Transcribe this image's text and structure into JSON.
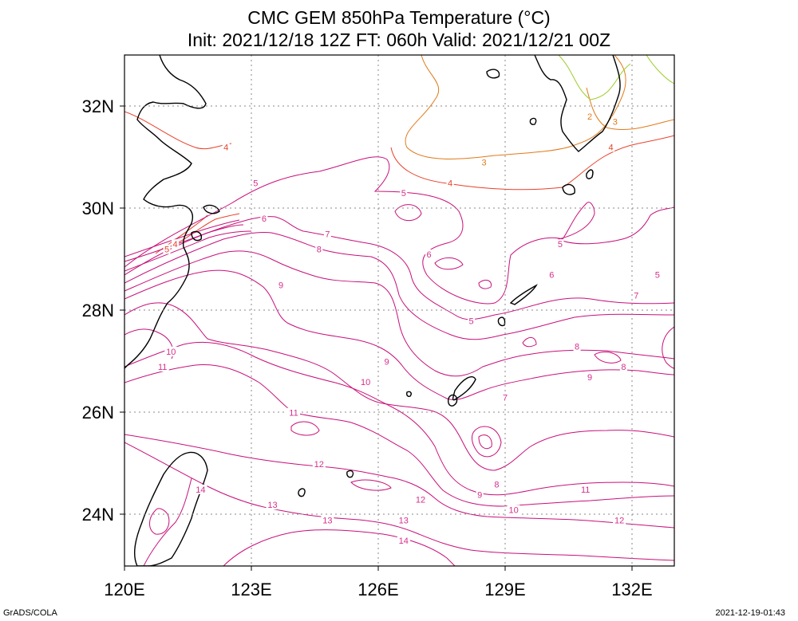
{
  "title": "CMC GEM 850hPa Temperature (°C)",
  "subtitle": "Init: 2021/12/18 12Z  FT: 060h  Valid: 2021/12/21 00Z",
  "footer_left": "GrADS/COLA",
  "footer_right": "2021-12-19-01:43",
  "map": {
    "lon_range": [
      120,
      133
    ],
    "lat_range": [
      23,
      33
    ],
    "x_ticks": [
      "120E",
      "123E",
      "126E",
      "129E",
      "132E"
    ],
    "y_ticks": [
      "24N",
      "26N",
      "28N",
      "30N",
      "32N"
    ],
    "grid": "dotted",
    "contour_interval": 1,
    "contour_labels": [
      {
        "value": "4",
        "lon": 122.4,
        "lat": 31.2,
        "color": "#e8402a"
      },
      {
        "value": "5",
        "lon": 123.1,
        "lat": 30.5,
        "color": "#d62f8c"
      },
      {
        "value": "6",
        "lon": 123.3,
        "lat": 29.8,
        "color": "#d62f8c"
      },
      {
        "value": "7",
        "lon": 124.8,
        "lat": 29.5,
        "color": "#d62f8c"
      },
      {
        "value": "8",
        "lon": 124.6,
        "lat": 29.2,
        "color": "#d62f8c"
      },
      {
        "value": "9",
        "lon": 123.7,
        "lat": 28.5,
        "color": "#d62f8c"
      },
      {
        "value": "10",
        "lon": 121.1,
        "lat": 27.2,
        "color": "#d62f8c"
      },
      {
        "value": "11",
        "lon": 120.9,
        "lat": 26.9,
        "color": "#d62f8c"
      },
      {
        "value": "5",
        "lon": 121.0,
        "lat": 29.2,
        "color": "#e8402a"
      },
      {
        "value": "4",
        "lon": 121.2,
        "lat": 29.3,
        "color": "#e8402a"
      },
      {
        "value": "5",
        "lon": 126.6,
        "lat": 30.3,
        "color": "#d62f8c"
      },
      {
        "value": "4",
        "lon": 127.7,
        "lat": 30.5,
        "color": "#e8402a"
      },
      {
        "value": "3",
        "lon": 128.5,
        "lat": 30.9,
        "color": "#e07a1a"
      },
      {
        "value": "2",
        "lon": 131.0,
        "lat": 31.8,
        "color": "#e07a1a"
      },
      {
        "value": "3",
        "lon": 131.6,
        "lat": 31.7,
        "color": "#e07a1a"
      },
      {
        "value": "4",
        "lon": 131.5,
        "lat": 31.2,
        "color": "#e8402a"
      },
      {
        "value": "6",
        "lon": 127.2,
        "lat": 29.1,
        "color": "#d62f8c"
      },
      {
        "value": "5",
        "lon": 130.3,
        "lat": 29.3,
        "color": "#d62f8c"
      },
      {
        "value": "5",
        "lon": 132.6,
        "lat": 28.7,
        "color": "#d62f8c"
      },
      {
        "value": "6",
        "lon": 130.1,
        "lat": 28.7,
        "color": "#d62f8c"
      },
      {
        "value": "7",
        "lon": 132.1,
        "lat": 28.3,
        "color": "#d62f8c"
      },
      {
        "value": "5",
        "lon": 128.2,
        "lat": 27.8,
        "color": "#d62f8c"
      },
      {
        "value": "8",
        "lon": 130.7,
        "lat": 27.3,
        "color": "#d62f8c"
      },
      {
        "value": "8",
        "lon": 131.8,
        "lat": 26.9,
        "color": "#d62f8c"
      },
      {
        "value": "9",
        "lon": 126.2,
        "lat": 27.0,
        "color": "#d62f8c"
      },
      {
        "value": "9",
        "lon": 131.0,
        "lat": 26.7,
        "color": "#d62f8c"
      },
      {
        "value": "10",
        "lon": 125.7,
        "lat": 26.6,
        "color": "#d62f8c"
      },
      {
        "value": "7",
        "lon": 129.0,
        "lat": 26.3,
        "color": "#d62f8c"
      },
      {
        "value": "11",
        "lon": 124.0,
        "lat": 26.0,
        "color": "#d62f8c"
      },
      {
        "value": "12",
        "lon": 124.6,
        "lat": 25.0,
        "color": "#d62f8c"
      },
      {
        "value": "14",
        "lon": 121.8,
        "lat": 24.5,
        "color": "#d62f8c"
      },
      {
        "value": "13",
        "lon": 123.5,
        "lat": 24.2,
        "color": "#d62f8c"
      },
      {
        "value": "13",
        "lon": 124.8,
        "lat": 23.9,
        "color": "#d62f8c"
      },
      {
        "value": "12",
        "lon": 127.0,
        "lat": 24.3,
        "color": "#d62f8c"
      },
      {
        "value": "13",
        "lon": 126.6,
        "lat": 23.9,
        "color": "#d62f8c"
      },
      {
        "value": "14",
        "lon": 126.6,
        "lat": 23.5,
        "color": "#d62f8c"
      },
      {
        "value": "8",
        "lon": 128.8,
        "lat": 24.6,
        "color": "#d62f8c"
      },
      {
        "value": "9",
        "lon": 128.4,
        "lat": 24.4,
        "color": "#d62f8c"
      },
      {
        "value": "10",
        "lon": 129.2,
        "lat": 24.1,
        "color": "#d62f8c"
      },
      {
        "value": "11",
        "lon": 130.9,
        "lat": 24.5,
        "color": "#d62f8c"
      },
      {
        "value": "12",
        "lon": 131.7,
        "lat": 23.9,
        "color": "#d62f8c"
      }
    ]
  }
}
